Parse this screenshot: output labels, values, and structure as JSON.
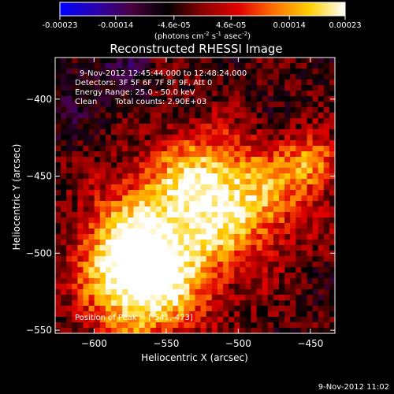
{
  "colorbar": {
    "ticks": [
      "-0.00023",
      "-0.00014",
      "-4.6e-05",
      "4.6e-05",
      "0.00014",
      "0.00023"
    ],
    "tick_values": [
      -0.00023,
      -0.00014,
      -4.6e-05,
      4.6e-05,
      0.00014,
      0.00023
    ],
    "range": [
      -0.00023,
      0.00023
    ],
    "units_text": "(photons cm",
    "units_exp1": "-2",
    "units_mid": " s",
    "units_exp2": "-1",
    "units_tail": " asec",
    "units_exp3": "-2",
    "units_close": ")",
    "stops": [
      "#0000ff",
      "#2a00b0",
      "#4a0040",
      "#000000",
      "#8a0000",
      "#e00000",
      "#ff7000",
      "#ffd000",
      "#ffffff"
    ]
  },
  "chart_data": {
    "type": "heatmap",
    "title": "Reconstructed RHESSI Image",
    "xlabel": "Heliocentric X (arcsec)",
    "ylabel": "Heliocentric Y (arcsec)",
    "xlim": [
      -627,
      -433
    ],
    "ylim": [
      -552,
      -373
    ],
    "xticks": [
      -600,
      -550,
      -500,
      -450
    ],
    "yticks": [
      -400,
      -450,
      -500,
      -550
    ],
    "xtick_labels": [
      "−600",
      "−550",
      "−500",
      "−450"
    ],
    "ytick_labels": [
      "−400",
      "−450",
      "−500",
      "−550"
    ],
    "peak": {
      "x": -541,
      "y": -473
    }
  },
  "annotations": {
    "time_range": "9-Nov-2012 12:45:44.000 to 12:48:24.000",
    "detectors": "Detectors: 3F 5F 6F 7F 8F 9F, Att 0",
    "energy": "Energy Range: 25.0 - 50.0 keV",
    "clean": "Clean",
    "counts": "Total counts: 2.90E+03",
    "peak_label": "Position of Peak = [-541,-473]"
  },
  "footer": {
    "timestamp": "9-Nov-2012 11:02"
  }
}
